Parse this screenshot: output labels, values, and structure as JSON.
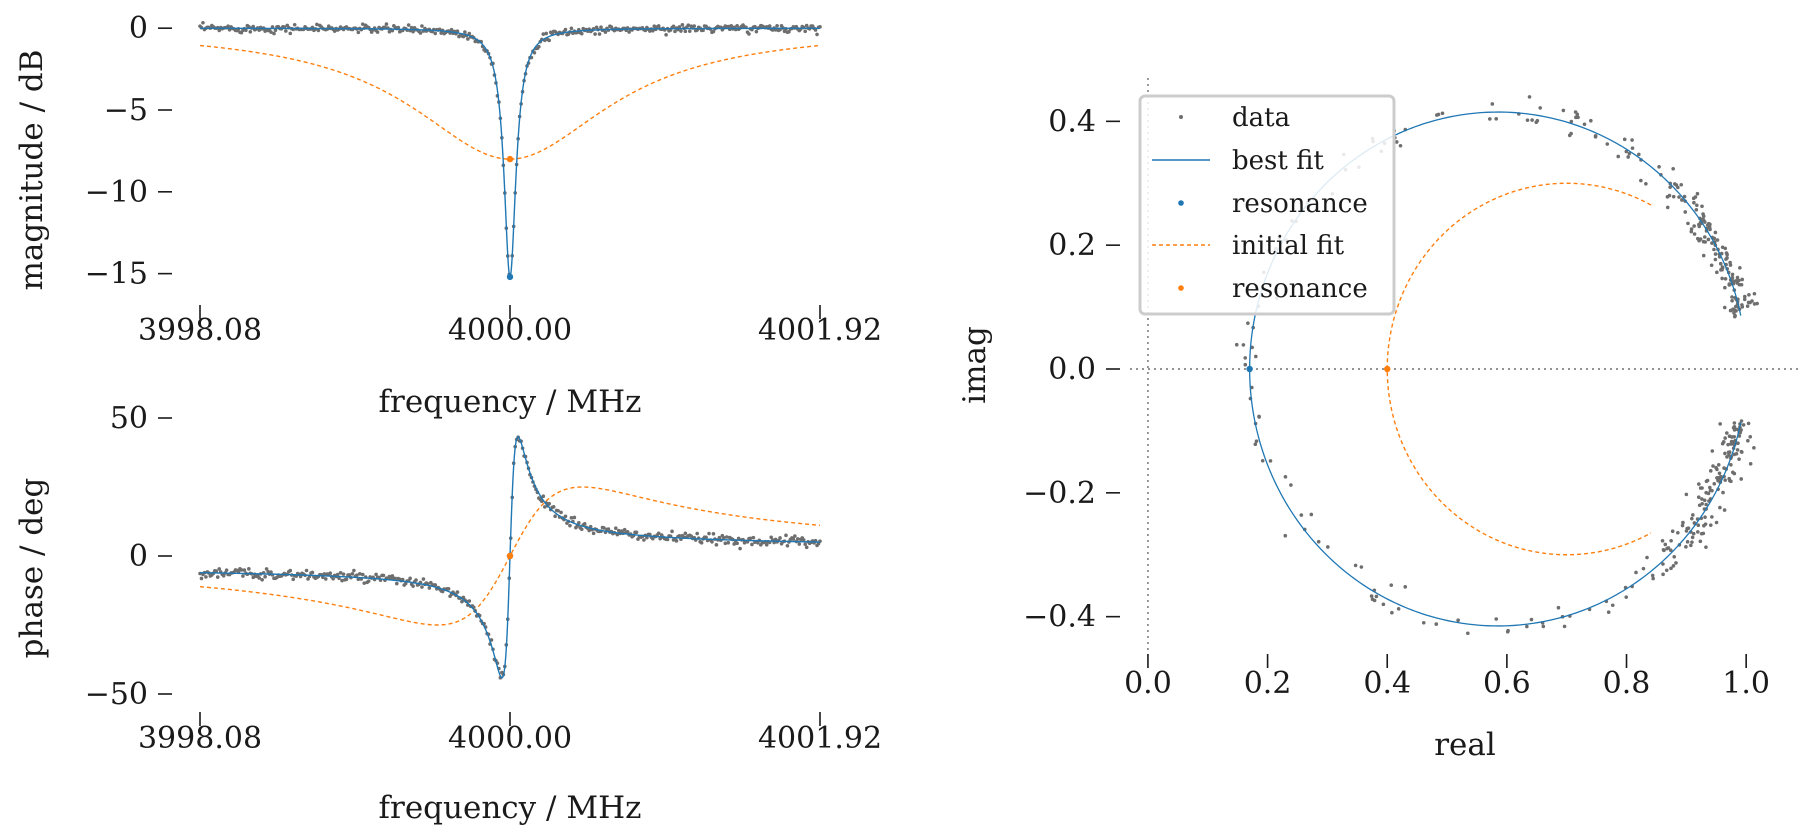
{
  "colors": {
    "data": "#6e6e6e",
    "best_fit": "#1f77b4",
    "initial_fit": "#ff7f0e"
  },
  "chart_data": [
    {
      "id": "magnitude",
      "type": "line",
      "xlabel": "frequency / MHz",
      "ylabel": "magnitude / dB",
      "xlim": [
        3998.08,
        4001.92
      ],
      "ylim": [
        -16,
        0.5
      ],
      "xticks": [
        3998.08,
        4000.0,
        4001.92
      ],
      "xtick_labels": [
        "3998.08",
        "4000.00",
        "4001.92"
      ],
      "yticks": [
        0,
        -5,
        -10,
        -15
      ],
      "ytick_labels": [
        "0",
        "−5",
        "−10",
        "−15"
      ],
      "f0": 4000.0,
      "best_fit": {
        "f0": 4000.0,
        "min_db": -15.2,
        "half_width_mhz": 0.045
      },
      "initial_fit": {
        "f0": 4000.0,
        "min_db": -8.0,
        "half_width_mhz": 0.75
      },
      "resonance_points": [
        {
          "series": "best fit",
          "x": 4000.0,
          "y": -15.2
        },
        {
          "series": "initial fit",
          "x": 4000.0,
          "y": -8.0
        }
      ],
      "grid": false
    },
    {
      "id": "phase",
      "type": "line",
      "xlabel": "frequency / MHz",
      "ylabel": "phase / deg",
      "xlim": [
        3998.08,
        4001.92
      ],
      "ylim": [
        -50,
        50
      ],
      "xticks": [
        3998.08,
        4000.0,
        4001.92
      ],
      "xtick_labels": [
        "3998.08",
        "4000.00",
        "4001.92"
      ],
      "yticks": [
        50,
        0,
        -50
      ],
      "ytick_labels": [
        "50",
        "0",
        "−50"
      ],
      "f0": 4000.0,
      "best_fit": {
        "peak_deg": 44,
        "trough_deg": -45,
        "half_width_mhz": 0.05,
        "edge_left_deg": -4,
        "edge_right_deg": 3
      },
      "initial_fit": {
        "max_deg": 25,
        "min_deg": -25,
        "half_width_mhz": 0.45,
        "edge_left_deg": -16,
        "edge_right_deg": 16
      },
      "resonance_points": [
        {
          "series": "best fit",
          "x": 4000.0,
          "y": 0.0
        },
        {
          "series": "initial fit",
          "x": 4000.0,
          "y": 0.0
        }
      ],
      "grid": false
    },
    {
      "id": "complex-plane",
      "type": "scatter",
      "xlabel": "real",
      "ylabel": "imag",
      "xlim": [
        -0.03,
        1.09
      ],
      "ylim": [
        -0.47,
        0.47
      ],
      "xticks": [
        0.0,
        0.2,
        0.4,
        0.6,
        0.8,
        1.0
      ],
      "xtick_labels": [
        "0.0",
        "0.2",
        "0.4",
        "0.6",
        "0.8",
        "1.0"
      ],
      "yticks": [
        0.4,
        0.2,
        0.0,
        -0.2,
        -0.4
      ],
      "ytick_labels": [
        "0.4",
        "0.2",
        "0.0",
        "−0.2",
        "−0.4"
      ],
      "best_fit_circle": {
        "center": [
          0.585,
          0.0
        ],
        "radius": 0.415,
        "gap_deg": 12
      },
      "initial_fit_circle": {
        "center": [
          0.7,
          0.0
        ],
        "radius": 0.3,
        "gap_deg": 62
      },
      "resonance_points": [
        {
          "series": "best fit",
          "x": 0.17,
          "y": 0.0
        },
        {
          "series": "initial fit",
          "x": 0.4,
          "y": 0.0
        }
      ],
      "reference_lines": {
        "x": 0.0,
        "y": 0.0
      },
      "legend": {
        "placement": "upper-left",
        "entries": [
          {
            "label": "data",
            "marker": "dot",
            "color": "#6e6e6e"
          },
          {
            "label": "best fit",
            "marker": "line",
            "color": "#1f77b4"
          },
          {
            "label": "resonance",
            "marker": "dot",
            "color": "#1f77b4"
          },
          {
            "label": "initial fit",
            "marker": "dashed-line",
            "color": "#ff7f0e"
          },
          {
            "label": "resonance",
            "marker": "dot",
            "color": "#ff7f0e"
          }
        ]
      },
      "grid": false
    }
  ]
}
